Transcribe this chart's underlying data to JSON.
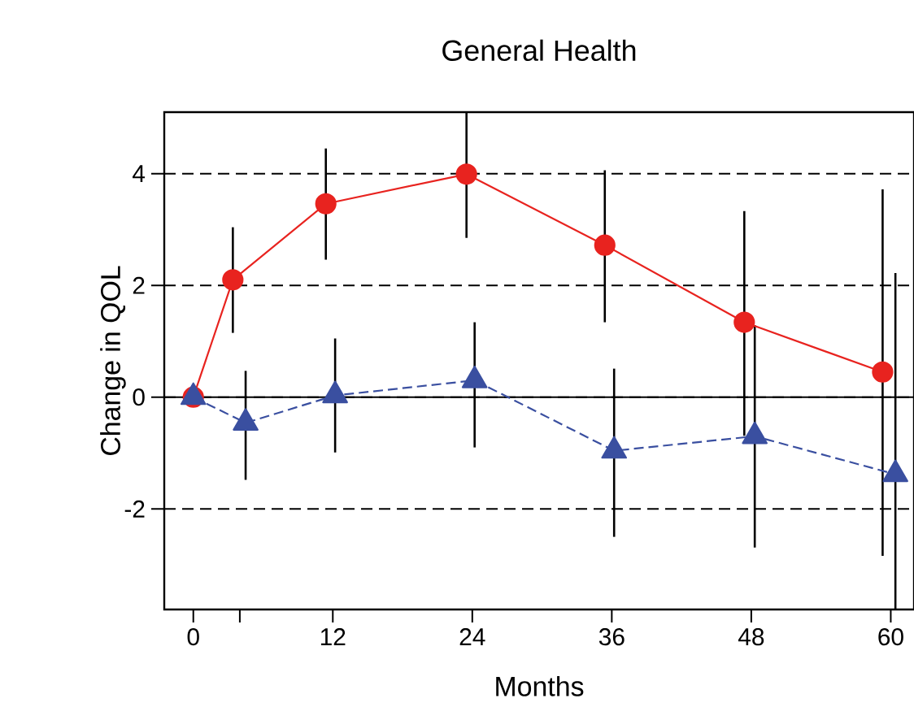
{
  "chart_data": {
    "type": "line",
    "title": "General Health",
    "xlabel": "Months",
    "ylabel": "Change in QOL",
    "xlim": [
      -2.5,
      62
    ],
    "ylim": [
      -3.8,
      5.1
    ],
    "xticks": [
      0,
      {
        "value": 4,
        "label": null
      },
      12,
      24,
      36,
      48,
      60
    ],
    "yticks": [
      -2,
      0,
      2,
      4
    ],
    "grid": "y",
    "ref_lines": [
      {
        "axis": "y",
        "value": 0
      }
    ],
    "series": [
      {
        "color": "#e8231f",
        "marker": "circle",
        "line_style": "solid",
        "x": [
          0,
          3.4,
          11.4,
          23.5,
          35.4,
          47.4,
          59.3
        ],
        "values": [
          0,
          2.1,
          3.46,
          3.99,
          2.72,
          1.34,
          0.45
        ],
        "errors": [
          null,
          [
            1.15,
            3.04
          ],
          [
            2.46,
            4.45
          ],
          [
            2.85,
            5.1
          ],
          [
            1.34,
            4.06
          ],
          [
            -0.69,
            3.33
          ],
          [
            -2.84,
            3.72
          ]
        ]
      },
      {
        "color": "#3a4fa0",
        "marker": "triangle",
        "line_style": "dashed",
        "x": [
          0,
          4.5,
          12.2,
          24.2,
          36.2,
          48.3,
          60.4
        ],
        "values": [
          0,
          -0.46,
          0.03,
          0.3,
          -0.96,
          -0.7,
          -1.38
        ],
        "errors": [
          null,
          [
            -1.48,
            0.47
          ],
          [
            -0.99,
            1.05
          ],
          [
            -0.9,
            1.34
          ],
          [
            -2.5,
            0.51
          ],
          [
            -2.69,
            1.29
          ],
          [
            -3.8,
            2.22
          ]
        ]
      }
    ]
  }
}
